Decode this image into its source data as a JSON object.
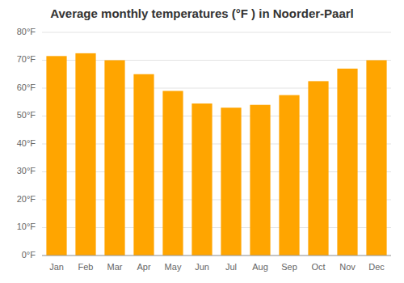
{
  "chart_data": {
    "type": "bar",
    "title": "Average monthly temperatures (°F ) in Noorder-Paarl",
    "categories": [
      "Jan",
      "Feb",
      "Mar",
      "Apr",
      "May",
      "Jun",
      "Jul",
      "Aug",
      "Sep",
      "Oct",
      "Nov",
      "Dec"
    ],
    "values": [
      71.5,
      72.5,
      70.0,
      65.0,
      59.0,
      54.5,
      53.0,
      54.0,
      57.5,
      62.5,
      67.0,
      70.0
    ],
    "color": "#FFA500",
    "ylim": [
      0,
      80
    ],
    "yticks": [
      {
        "value": 0,
        "label": "0°F"
      },
      {
        "value": 10,
        "label": "10°F"
      },
      {
        "value": 20,
        "label": "20°F"
      },
      {
        "value": 30,
        "label": "30°F"
      },
      {
        "value": 40,
        "label": "40°F"
      },
      {
        "value": 50,
        "label": "50°F"
      },
      {
        "value": 60,
        "label": "60°F"
      },
      {
        "value": 70,
        "label": "70°F"
      },
      {
        "value": 80,
        "label": "80°F"
      }
    ],
    "grid": true
  }
}
